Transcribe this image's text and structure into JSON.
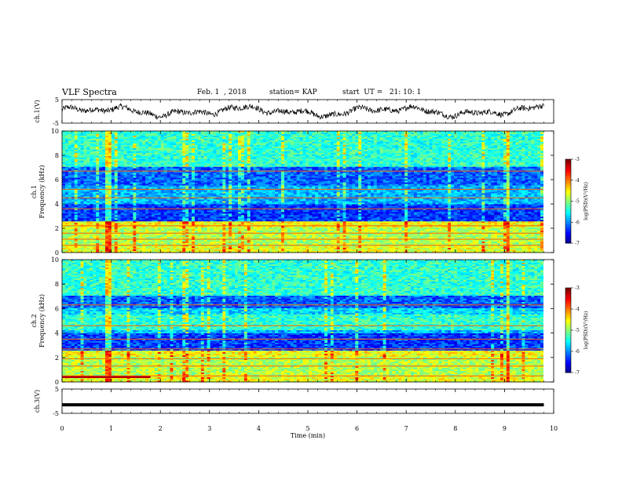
{
  "header": {
    "title": "VLF Spectra",
    "date": "Feb. 1  , 2018",
    "station": "station= KAP",
    "start": "start  UT =   21: 10: 1"
  },
  "chart_data": [
    {
      "type": "line",
      "panel": "ch1-waveform",
      "ylabel": "ch.1(V)",
      "xlim": [
        0,
        10
      ],
      "ylim": [
        -5,
        5
      ],
      "yticks": [
        "5",
        "-5"
      ],
      "x_end": 9.8,
      "description_series": "noisy waveform oscillating roughly between -3 and 4 V"
    },
    {
      "type": "heatmap",
      "panel": "ch1-spectrogram",
      "ylabel": "ch.1\nFrequency  (kHz)",
      "xlim": [
        0,
        10
      ],
      "ylim": [
        0,
        10
      ],
      "yticks": [
        "0",
        "2",
        "4",
        "6",
        "8",
        "10"
      ],
      "colorbar": {
        "label": "log(PSD)(V²/Hz)",
        "range": [
          -7,
          -3
        ],
        "ticks": [
          "-3",
          "-4",
          "-5",
          "-6",
          "-7"
        ]
      }
    },
    {
      "type": "heatmap",
      "panel": "ch2-spectrogram",
      "ylabel": "ch.2\nFrequency  (kHz)",
      "xlim": [
        0,
        10
      ],
      "ylim": [
        0,
        10
      ],
      "yticks": [
        "0",
        "2",
        "4",
        "6",
        "8",
        "10"
      ],
      "colorbar": {
        "label": "log(PSD)(V²/Hz)",
        "range": [
          -7,
          -3
        ],
        "ticks": [
          "-3",
          "-4",
          "-5",
          "-6",
          "-7"
        ]
      }
    },
    {
      "type": "line",
      "panel": "ch3-waveform",
      "ylabel": "ch.3(V)",
      "xlim": [
        0,
        10
      ],
      "ylim": [
        -5,
        5
      ],
      "yticks": [
        "5",
        "-5"
      ],
      "constant_value": -1.5,
      "x_end": 9.8
    }
  ],
  "xaxis": {
    "label": "Time  (min)",
    "ticks": [
      "0",
      "1",
      "2",
      "3",
      "4",
      "5",
      "6",
      "7",
      "8",
      "9",
      "10"
    ]
  }
}
